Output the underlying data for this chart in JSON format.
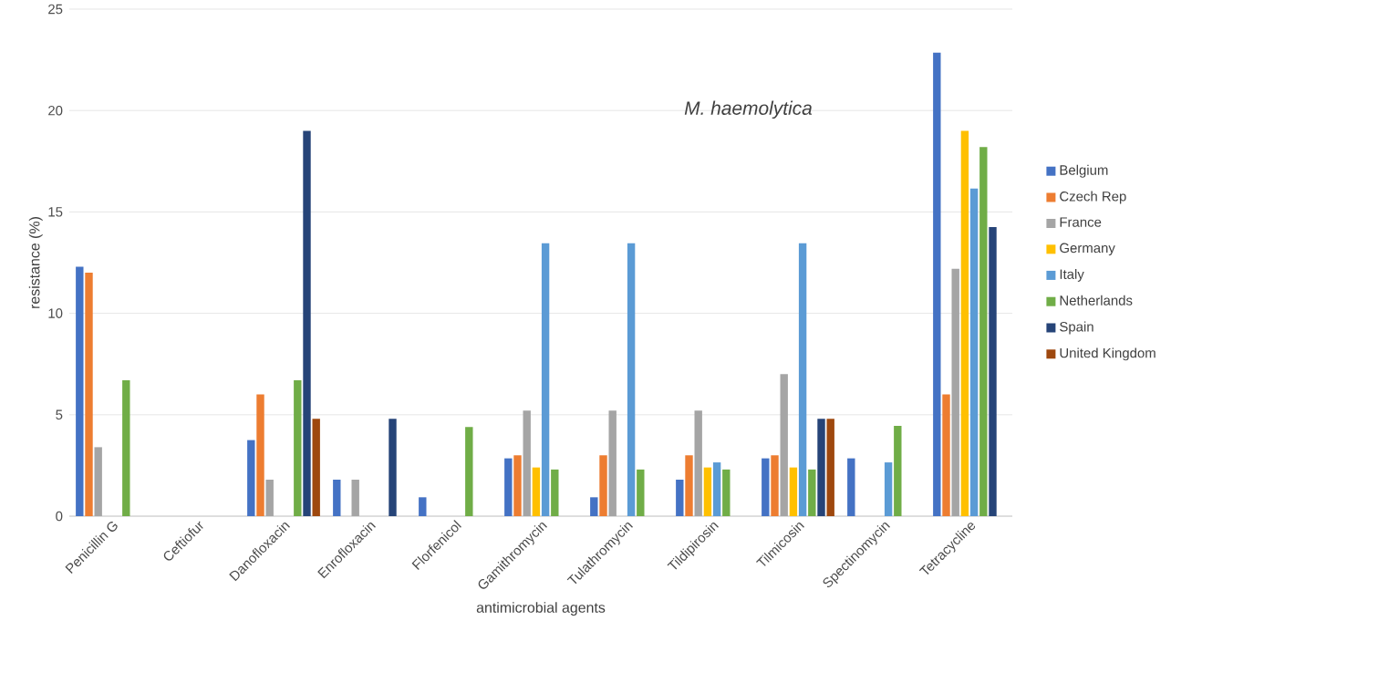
{
  "chart_data": {
    "type": "bar",
    "title": "M. haemolytica",
    "xlabel": "antimicrobial agents",
    "ylabel": "resistance (%)",
    "categories": [
      "Penicillin G",
      "Ceftiofur",
      "Danofloxacin",
      "Enrofloxacin",
      "Florfenicol",
      "Gamithromycin",
      "Tulathromycin",
      "Tildipirosin",
      "Tilmicosin",
      "Spectinomycin",
      "Tetracycline"
    ],
    "series": [
      {
        "name": "Belgium",
        "color": "#4472c4",
        "values": [
          12.3,
          null,
          3.75,
          1.8,
          0.93,
          2.85,
          0.93,
          1.8,
          2.85,
          2.85,
          22.85
        ]
      },
      {
        "name": "Czech Rep",
        "color": "#ed7d31",
        "values": [
          12.0,
          null,
          6.0,
          null,
          null,
          3.0,
          3.0,
          3.0,
          3.0,
          null,
          6.0
        ]
      },
      {
        "name": "France",
        "color": "#a5a5a5",
        "values": [
          3.4,
          null,
          1.8,
          1.8,
          null,
          5.2,
          5.2,
          5.2,
          7.0,
          null,
          12.2
        ]
      },
      {
        "name": "Germany",
        "color": "#ffc000",
        "values": [
          null,
          null,
          null,
          null,
          null,
          2.4,
          null,
          2.4,
          2.4,
          null,
          19.0
        ]
      },
      {
        "name": "Italy",
        "color": "#5b9bd5",
        "values": [
          null,
          null,
          null,
          null,
          null,
          13.45,
          13.45,
          2.65,
          13.45,
          2.65,
          16.15
        ]
      },
      {
        "name": "Netherlands",
        "color": "#70ad47",
        "values": [
          6.7,
          null,
          6.7,
          null,
          4.4,
          2.3,
          2.3,
          2.3,
          2.3,
          4.45,
          18.2
        ]
      },
      {
        "name": "Spain",
        "color": "#264478",
        "values": [
          null,
          null,
          19.0,
          4.8,
          null,
          null,
          null,
          null,
          4.8,
          null,
          14.25
        ]
      },
      {
        "name": "United Kingdom",
        "color": "#9e480e",
        "values": [
          null,
          null,
          4.8,
          null,
          null,
          null,
          null,
          null,
          4.8,
          null,
          null
        ]
      }
    ],
    "ylim": [
      0,
      25
    ],
    "yticks": [
      0,
      5,
      10,
      15,
      20,
      25
    ],
    "grid": "y",
    "legend": "right"
  }
}
